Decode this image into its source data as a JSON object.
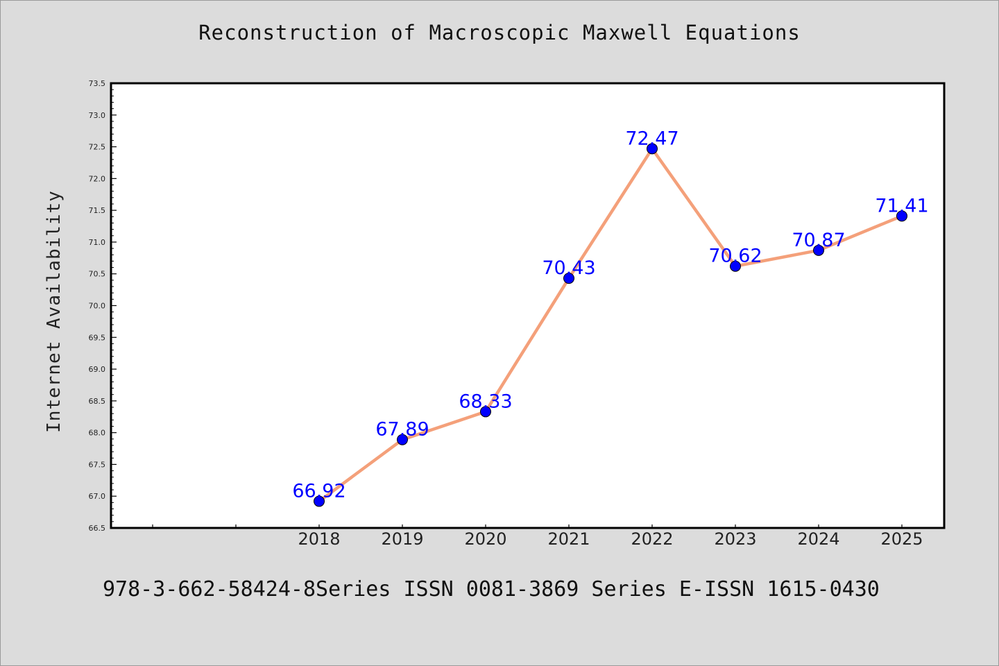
{
  "chart_data": {
    "type": "line",
    "title": "Reconstruction of Macroscopic Maxwell Equations",
    "xlabel": "",
    "ylabel": "Internet Availability",
    "categories": [
      "2018",
      "2019",
      "2020",
      "2021",
      "2022",
      "2023",
      "2024",
      "2025"
    ],
    "series": [
      {
        "values": [
          66.92,
          67.89,
          68.33,
          70.43,
          72.47,
          70.62,
          70.87,
          71.41
        ],
        "labels": [
          "66.92",
          "67.89",
          "68.33",
          "70.43",
          "72.47",
          "70.62",
          "70.87",
          "71.41"
        ]
      }
    ],
    "ylim": [
      66.5,
      73.5
    ],
    "yticks": [
      "66.5",
      "67.0",
      "67.5",
      "68.0",
      "68.5",
      "69.0",
      "69.5",
      "70.0",
      "70.5",
      "71.0",
      "71.5",
      "72.0",
      "72.5",
      "73.0",
      "73.5"
    ],
    "grid": false,
    "legend": "none",
    "colors": {
      "line": "#f4a07a",
      "marker": "#0000ff",
      "data_label": "#0000ff",
      "background": "#dcdcdc",
      "plot_background": "#ffffff"
    }
  },
  "footer": "978-3-662-58424-8Series ISSN 0081-3869 Series E-ISSN 1615-0430"
}
